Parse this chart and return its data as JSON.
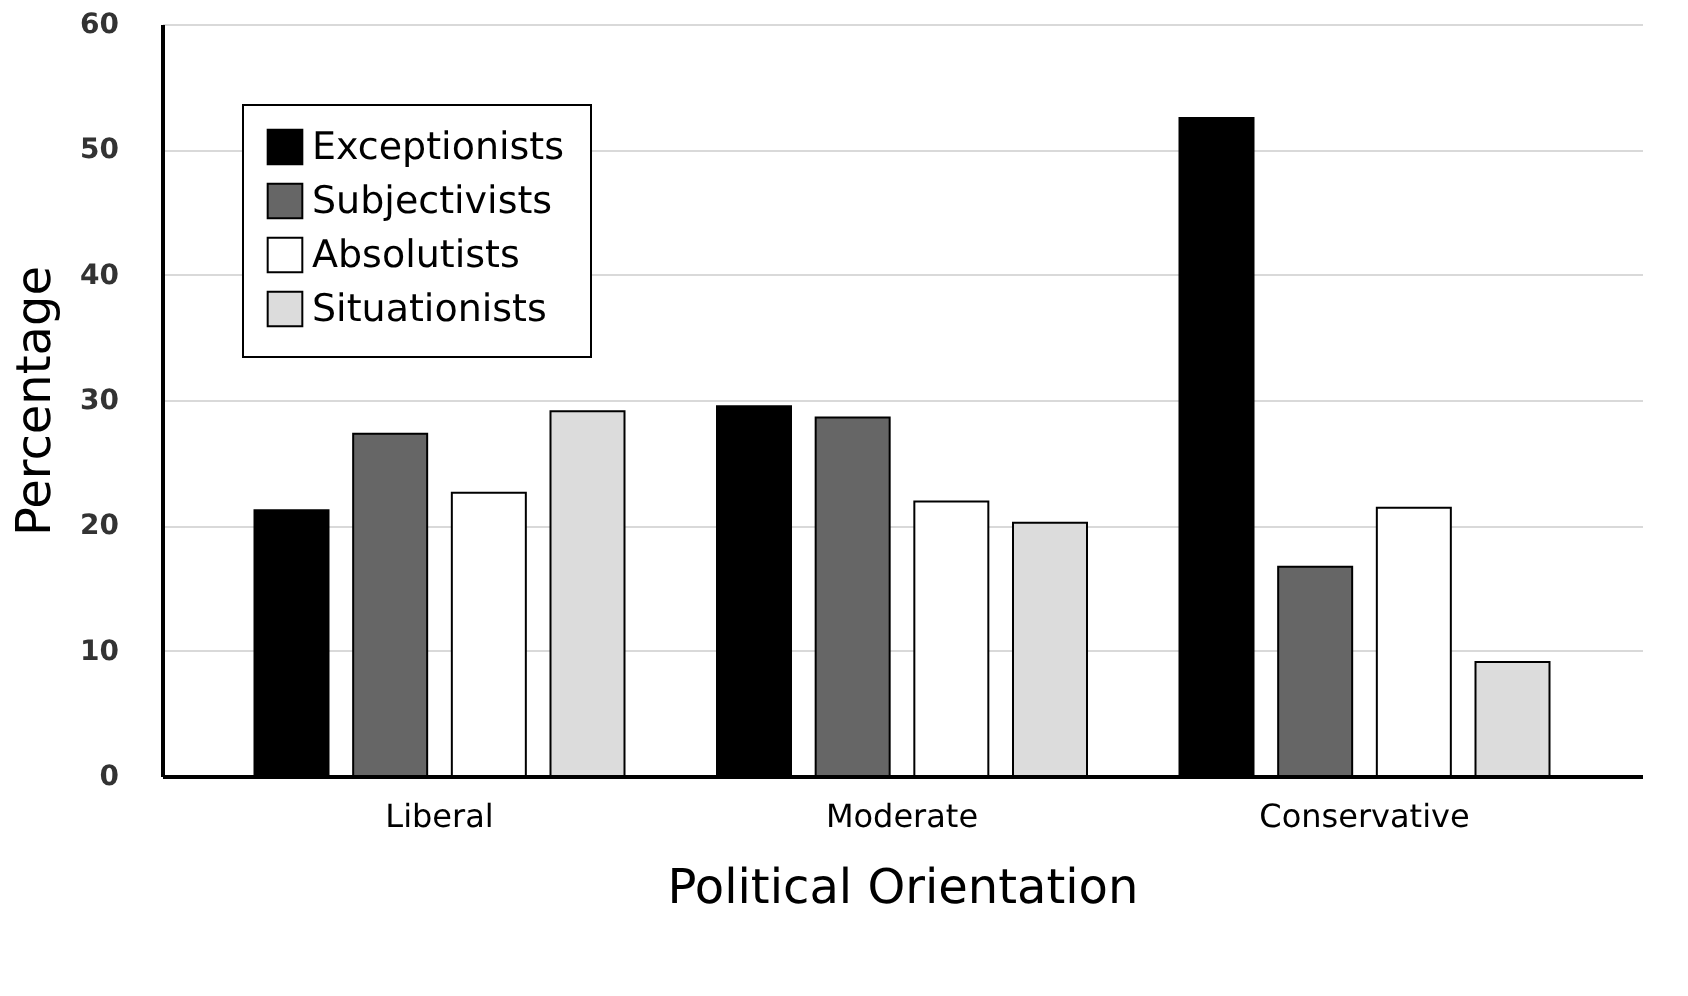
{
  "chart_data": {
    "type": "bar",
    "xlabel": "Political Orientation",
    "ylabel": "Percentage",
    "categories": [
      "Liberal",
      "Moderate",
      "Conservative"
    ],
    "series": [
      {
        "name": "Exceptionists",
        "color": "#000000",
        "values": [
          21.2,
          29.5,
          52.5
        ]
      },
      {
        "name": "Subjectivists",
        "color": "#666666",
        "values": [
          27.3,
          28.6,
          16.7
        ]
      },
      {
        "name": "Absolutists",
        "color": "#ffffff",
        "values": [
          22.6,
          21.9,
          21.4
        ]
      },
      {
        "name": "Situationists",
        "color": "#dcdcdc",
        "values": [
          29.1,
          20.2,
          9.1
        ]
      }
    ],
    "ylim": [
      0,
      60
    ],
    "yticks": [
      0,
      10,
      20,
      30,
      40,
      50,
      60
    ],
    "grid": "y",
    "legend": "top left"
  }
}
